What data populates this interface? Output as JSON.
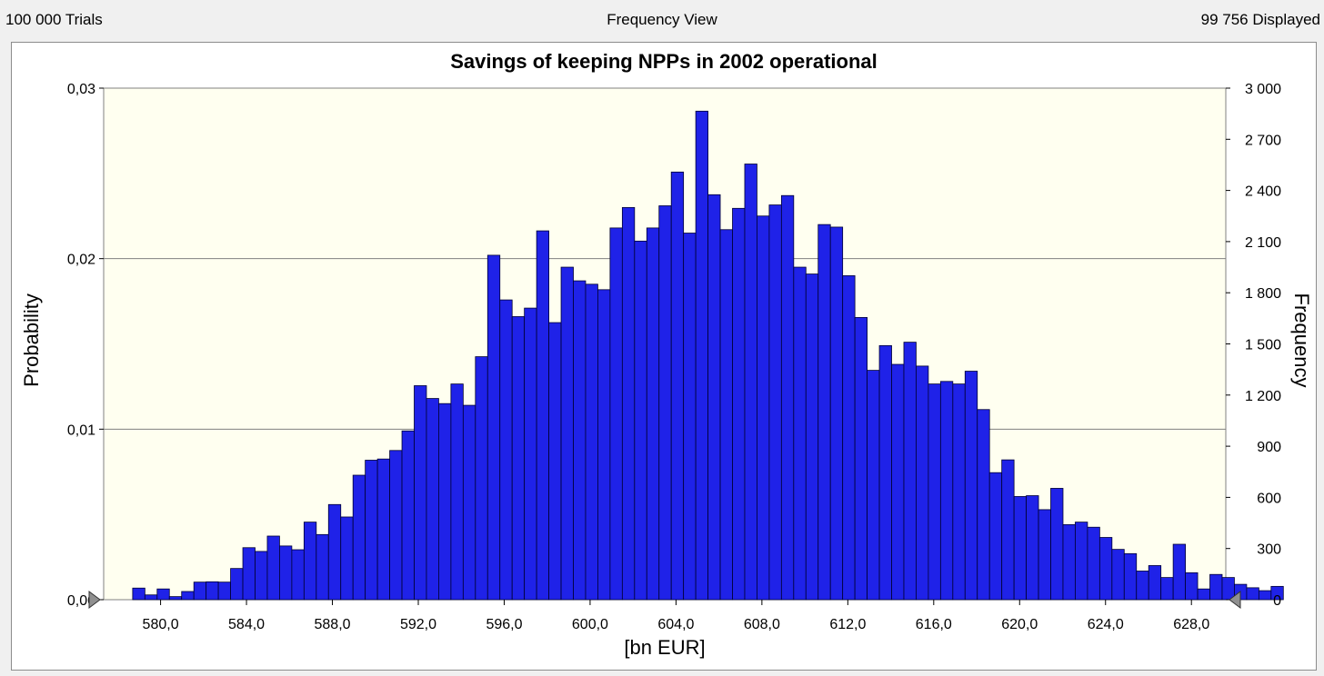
{
  "header": {
    "trials": "100 000 Trials",
    "view": "Frequency View",
    "displayed": "99 756 Displayed"
  },
  "colors": {
    "plot_background": "#fffff0",
    "bar_fill": "#1f22e8",
    "bar_stroke": "#000033",
    "gridline": "#808080",
    "marker": "#909090"
  },
  "chart_data": {
    "type": "bar",
    "title": "Savings of keeping NPPs in 2002 operational",
    "xlabel": "[bn EUR]",
    "ylabel": "Probability",
    "y2label": "Frequency",
    "xlim": [
      577.35,
      629.6
    ],
    "ylim": [
      0,
      0.03
    ],
    "y2lim": [
      0,
      3000
    ],
    "x_ticks": [
      "580,0",
      "584,0",
      "588,0",
      "592,0",
      "596,0",
      "600,0",
      "604,0",
      "608,0",
      "612,0",
      "616,0",
      "620,0",
      "624,0",
      "628,0"
    ],
    "x_tick_values": [
      580,
      584,
      588,
      592,
      596,
      600,
      604,
      608,
      612,
      616,
      620,
      624,
      628
    ],
    "y_ticks": [
      "0,00",
      "0,01",
      "0,02",
      "0,03"
    ],
    "y_tick_values": [
      0,
      0.01,
      0.02,
      0.03
    ],
    "y2_ticks": [
      "0",
      "300",
      "600",
      "900",
      "1 200",
      "1 500",
      "1 800",
      "2 100",
      "2 400",
      "2 700",
      "3 000"
    ],
    "y2_tick_values": [
      0,
      300,
      600,
      900,
      1200,
      1500,
      1800,
      2100,
      2400,
      2700,
      3000
    ],
    "grid": "horizontal",
    "bin_start": 578.7,
    "bin_width": 0.57,
    "values": [
      0.00068,
      0.00028,
      0.00063,
      0.00018,
      0.00048,
      0.00103,
      0.00105,
      0.00103,
      0.00183,
      0.00305,
      0.00283,
      0.00373,
      0.00315,
      0.00293,
      0.00455,
      0.00382,
      0.00558,
      0.00485,
      0.0073,
      0.00818,
      0.00825,
      0.00875,
      0.0099,
      0.01255,
      0.0118,
      0.0115,
      0.01265,
      0.0114,
      0.01425,
      0.0202,
      0.01758,
      0.0166,
      0.0171,
      0.02163,
      0.01625,
      0.0195,
      0.0187,
      0.0185,
      0.01818,
      0.0218,
      0.023,
      0.02103,
      0.0218,
      0.0231,
      0.02508,
      0.0215,
      0.02865,
      0.02375,
      0.0217,
      0.02295,
      0.02555,
      0.0225,
      0.02315,
      0.0237,
      0.0195,
      0.0191,
      0.022,
      0.02185,
      0.019,
      0.01655,
      0.01345,
      0.0149,
      0.0138,
      0.0151,
      0.0137,
      0.01265,
      0.0128,
      0.01265,
      0.0134,
      0.01115,
      0.00745,
      0.0082,
      0.00605,
      0.0061,
      0.00528,
      0.00653,
      0.0044,
      0.00455,
      0.00425,
      0.00365,
      0.00295,
      0.0027,
      0.00168,
      0.002,
      0.0013,
      0.00325,
      0.00158,
      0.00063,
      0.00148,
      0.0013,
      0.0009,
      0.0007,
      0.00053,
      0.00078
    ]
  }
}
